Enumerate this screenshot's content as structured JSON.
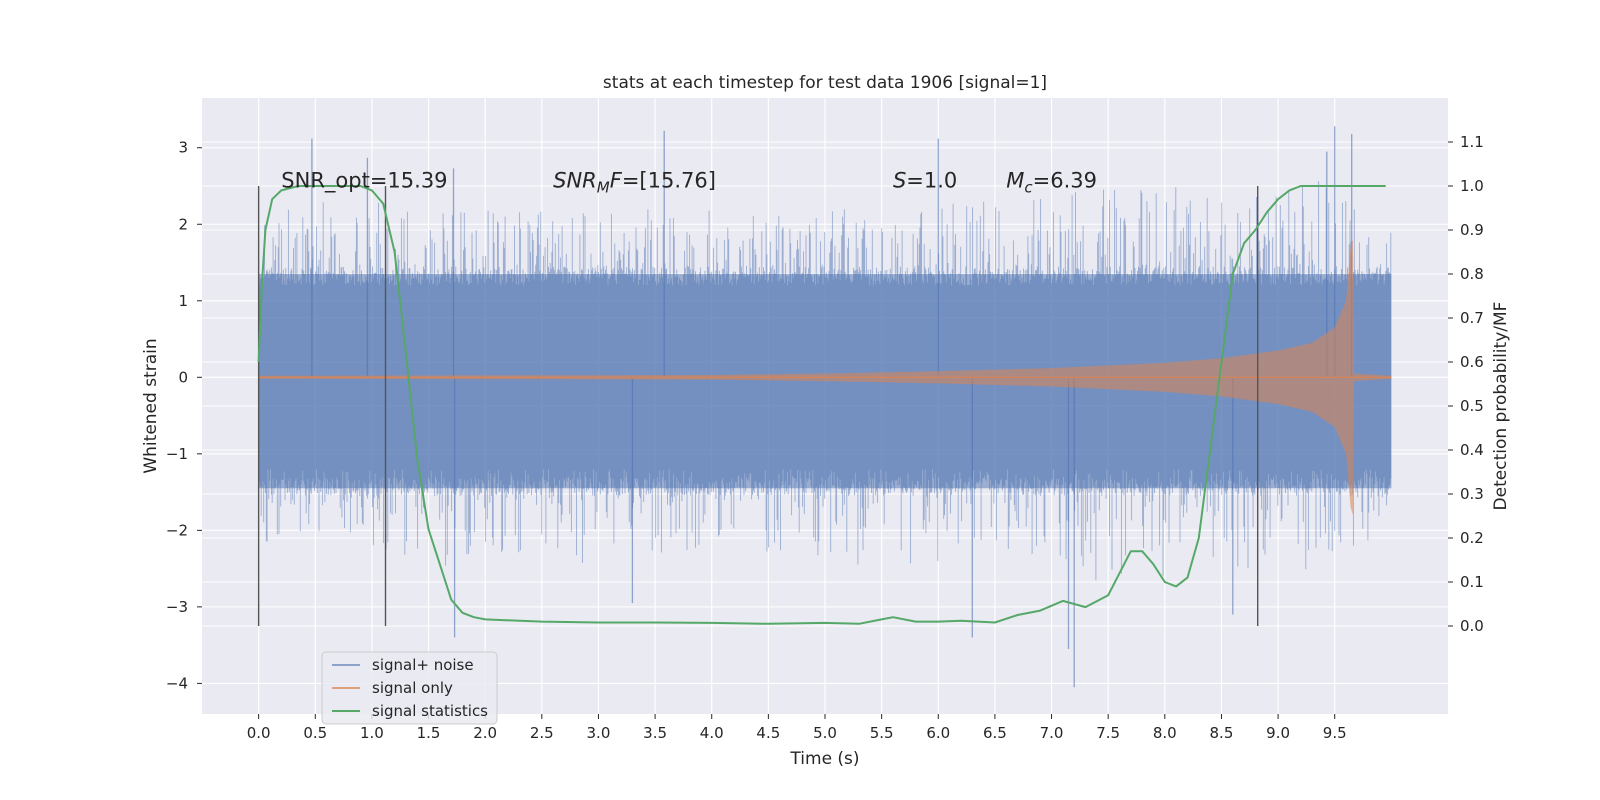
{
  "chart_data": {
    "type": "line",
    "title": "stats at each timestep for test data 1906 [signal=1]",
    "xlabel": "Time (s)",
    "ylabel": "Whitened strain",
    "y2label": "Detection probability/MF",
    "xlim": [
      -0.5,
      10.5
    ],
    "ylim": [
      -4.4,
      3.65
    ],
    "y2lim": [
      -0.2,
      1.2
    ],
    "xticks": [
      0.0,
      0.5,
      1.0,
      1.5,
      2.0,
      2.5,
      3.0,
      3.5,
      4.0,
      4.5,
      5.0,
      5.5,
      6.0,
      6.5,
      7.0,
      7.5,
      8.0,
      8.5,
      9.0,
      9.5
    ],
    "xtick_labels": [
      "0.0",
      "0.5",
      "1.0",
      "1.5",
      "2.0",
      "2.5",
      "3.0",
      "3.5",
      "4.0",
      "4.5",
      "5.0",
      "5.5",
      "6.0",
      "6.5",
      "7.0",
      "7.5",
      "8.0",
      "8.5",
      "9.0",
      "9.5"
    ],
    "yticks": [
      -4,
      -3,
      -2,
      -1,
      0,
      1,
      2,
      3
    ],
    "ytick_labels": [
      "−4",
      "−3",
      "−2",
      "−1",
      "0",
      "1",
      "2",
      "3"
    ],
    "y2ticks": [
      0.0,
      0.1,
      0.2,
      0.3,
      0.4,
      0.5,
      0.6,
      0.7,
      0.8,
      0.9,
      1.0,
      1.1
    ],
    "y2tick_labels": [
      "0.0",
      "0.1",
      "0.2",
      "0.3",
      "0.4",
      "0.5",
      "0.6",
      "0.7",
      "0.8",
      "0.9",
      "1.0",
      "1.1"
    ],
    "grid": true,
    "legend_position": "lower-left",
    "colors": {
      "background": "#eaeaf2",
      "grid": "#ffffff",
      "noise": "#4c72b0",
      "signal": "#dd8452",
      "stat": "#55a868",
      "vline": "#555555"
    },
    "series": [
      {
        "name": "signal+ noise",
        "axis": "left",
        "style": "dense-noise",
        "x_range": [
          0.0,
          10.0
        ],
        "core_band": [
          -1.45,
          1.35
        ],
        "envelope_max": [
          [
            0.0,
            2.2
          ],
          [
            0.5,
            2.4
          ],
          [
            1.0,
            2.3
          ],
          [
            1.5,
            2.25
          ],
          [
            2.0,
            2.2
          ],
          [
            2.5,
            2.25
          ],
          [
            3.0,
            2.2
          ],
          [
            3.5,
            2.2
          ],
          [
            4.0,
            2.2
          ],
          [
            4.5,
            2.1
          ],
          [
            5.0,
            2.2
          ],
          [
            5.5,
            2.2
          ],
          [
            6.0,
            2.3
          ],
          [
            6.5,
            2.3
          ],
          [
            7.0,
            2.4
          ],
          [
            7.5,
            2.5
          ],
          [
            8.0,
            2.5
          ],
          [
            8.5,
            2.5
          ],
          [
            9.0,
            2.5
          ],
          [
            9.5,
            2.6
          ],
          [
            10.0,
            2.2
          ]
        ],
        "envelope_min": [
          [
            0.0,
            -2.2
          ],
          [
            0.5,
            -2.0
          ],
          [
            1.0,
            -2.2
          ],
          [
            1.5,
            -2.5
          ],
          [
            2.0,
            -2.4
          ],
          [
            2.5,
            -2.4
          ],
          [
            3.0,
            -2.5
          ],
          [
            3.5,
            -2.4
          ],
          [
            4.0,
            -2.3
          ],
          [
            4.5,
            -2.3
          ],
          [
            5.0,
            -2.4
          ],
          [
            5.5,
            -2.5
          ],
          [
            6.0,
            -2.4
          ],
          [
            6.5,
            -2.6
          ],
          [
            7.0,
            -2.6
          ],
          [
            7.5,
            -2.7
          ],
          [
            8.0,
            -2.6
          ],
          [
            8.5,
            -2.5
          ],
          [
            9.0,
            -2.5
          ],
          [
            9.5,
            -2.6
          ],
          [
            10.0,
            -2.0
          ]
        ],
        "spikes": [
          [
            0.47,
            3.12
          ],
          [
            0.96,
            2.87
          ],
          [
            1.72,
            2.73
          ],
          [
            3.58,
            3.22
          ],
          [
            6.0,
            3.12
          ],
          [
            9.5,
            3.28
          ],
          [
            9.65,
            3.18
          ],
          [
            9.43,
            2.95
          ],
          [
            1.73,
            -3.4
          ],
          [
            6.3,
            -3.4
          ],
          [
            7.2,
            -4.05
          ],
          [
            7.15,
            -3.55
          ],
          [
            3.3,
            -2.95
          ],
          [
            8.6,
            -3.1
          ]
        ]
      },
      {
        "name": "signal only",
        "axis": "left",
        "style": "chirp",
        "x_range": [
          0.0,
          9.66
        ],
        "amplitude_envelope": [
          [
            0.0,
            0.02
          ],
          [
            4.0,
            0.03
          ],
          [
            5.0,
            0.05
          ],
          [
            6.0,
            0.08
          ],
          [
            7.0,
            0.12
          ],
          [
            8.0,
            0.19
          ],
          [
            8.5,
            0.25
          ],
          [
            9.0,
            0.35
          ],
          [
            9.3,
            0.45
          ],
          [
            9.5,
            0.65
          ],
          [
            9.6,
            1.0
          ],
          [
            9.64,
            1.7
          ],
          [
            9.66,
            1.8
          ],
          [
            9.67,
            0.05
          ],
          [
            10.0,
            0.02
          ]
        ]
      },
      {
        "name": "signal statistics",
        "axis": "right",
        "style": "line",
        "points": [
          [
            0.0,
            0.6
          ],
          [
            0.03,
            0.78
          ],
          [
            0.06,
            0.9
          ],
          [
            0.12,
            0.97
          ],
          [
            0.2,
            0.99
          ],
          [
            0.35,
            1.0
          ],
          [
            0.6,
            1.0
          ],
          [
            0.9,
            1.0
          ],
          [
            1.0,
            0.99
          ],
          [
            1.1,
            0.96
          ],
          [
            1.2,
            0.85
          ],
          [
            1.3,
            0.62
          ],
          [
            1.4,
            0.38
          ],
          [
            1.5,
            0.22
          ],
          [
            1.6,
            0.14
          ],
          [
            1.7,
            0.06
          ],
          [
            1.8,
            0.03
          ],
          [
            1.9,
            0.02
          ],
          [
            2.0,
            0.015
          ],
          [
            2.5,
            0.01
          ],
          [
            3.0,
            0.008
          ],
          [
            3.5,
            0.008
          ],
          [
            4.0,
            0.007
          ],
          [
            4.5,
            0.005
          ],
          [
            5.0,
            0.007
          ],
          [
            5.3,
            0.005
          ],
          [
            5.5,
            0.015
          ],
          [
            5.6,
            0.02
          ],
          [
            5.8,
            0.01
          ],
          [
            6.0,
            0.01
          ],
          [
            6.2,
            0.012
          ],
          [
            6.5,
            0.008
          ],
          [
            6.7,
            0.025
          ],
          [
            6.9,
            0.035
          ],
          [
            7.1,
            0.057
          ],
          [
            7.3,
            0.043
          ],
          [
            7.5,
            0.07
          ],
          [
            7.6,
            0.12
          ],
          [
            7.7,
            0.17
          ],
          [
            7.8,
            0.17
          ],
          [
            7.9,
            0.14
          ],
          [
            8.0,
            0.1
          ],
          [
            8.1,
            0.09
          ],
          [
            8.2,
            0.11
          ],
          [
            8.3,
            0.2
          ],
          [
            8.4,
            0.4
          ],
          [
            8.5,
            0.6
          ],
          [
            8.6,
            0.8
          ],
          [
            8.7,
            0.87
          ],
          [
            8.8,
            0.9
          ],
          [
            8.9,
            0.94
          ],
          [
            9.0,
            0.97
          ],
          [
            9.1,
            0.99
          ],
          [
            9.2,
            1.0
          ],
          [
            9.5,
            1.0
          ],
          [
            9.95,
            1.0
          ]
        ]
      }
    ],
    "vlines": [
      {
        "x": 0.0,
        "y2_from": 0.0,
        "y2_to": 1.0
      },
      {
        "x": 1.12,
        "y2_from": 0.0,
        "y2_to": 1.0
      },
      {
        "x": 8.82,
        "y2_from": 0.0,
        "y2_to": 1.0
      }
    ],
    "annotations": [
      {
        "x": 0.2,
        "y": 2.48,
        "parts": [
          {
            "t": "SNR_opt=15.39"
          }
        ]
      },
      {
        "x": 2.6,
        "y": 2.48,
        "parts": [
          {
            "t": "SNR",
            "i": true
          },
          {
            "t": "M",
            "i": true,
            "sub": true
          },
          {
            "t": "F",
            "i": true
          },
          {
            "t": "=[15.76]"
          }
        ]
      },
      {
        "x": 5.6,
        "y": 2.48,
        "parts": [
          {
            "t": "S",
            "i": true
          },
          {
            "t": "=1.0"
          }
        ]
      },
      {
        "x": 6.6,
        "y": 2.48,
        "parts": [
          {
            "t": "M",
            "i": true
          },
          {
            "t": "c",
            "i": true,
            "sub": true
          },
          {
            "t": "=6.39"
          }
        ]
      }
    ]
  }
}
